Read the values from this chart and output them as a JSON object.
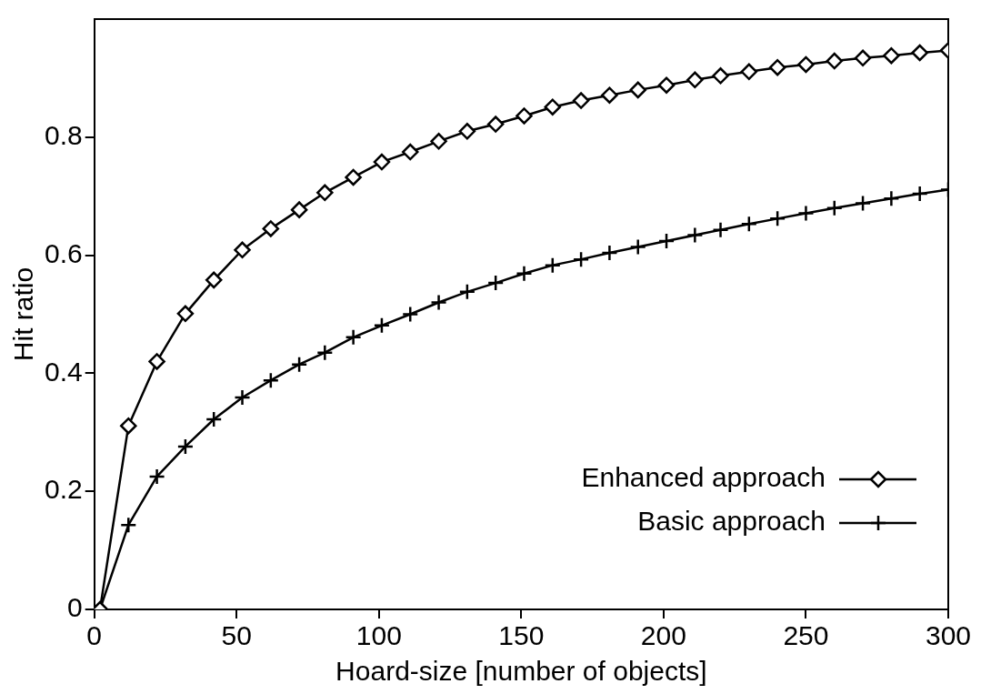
{
  "chart_data": {
    "type": "line",
    "xlabel": "Hoard-size [number of objects]",
    "ylabel": "Hit ratio",
    "x": [
      2,
      12,
      22,
      32,
      42,
      52,
      62,
      72,
      81,
      91,
      101,
      111,
      121,
      131,
      141,
      151,
      161,
      171,
      181,
      191,
      201,
      211,
      220,
      230,
      240,
      250,
      260,
      270,
      280,
      290,
      300
    ],
    "series": [
      {
        "name": "Enhanced approach",
        "color": "#000000",
        "marker": "diamond",
        "values": [
          0,
          0.311,
          0.42,
          0.501,
          0.558,
          0.609,
          0.645,
          0.677,
          0.706,
          0.732,
          0.758,
          0.775,
          0.793,
          0.81,
          0.822,
          0.836,
          0.851,
          0.862,
          0.871,
          0.88,
          0.888,
          0.897,
          0.904,
          0.911,
          0.918,
          0.923,
          0.929,
          0.934,
          0.938,
          0.943,
          0.947
        ]
      },
      {
        "name": "Basic approach",
        "color": "#000000",
        "marker": "cross",
        "values": [
          0,
          0.143,
          0.225,
          0.276,
          0.322,
          0.359,
          0.388,
          0.415,
          0.435,
          0.461,
          0.481,
          0.5,
          0.52,
          0.538,
          0.553,
          0.569,
          0.583,
          0.593,
          0.604,
          0.614,
          0.624,
          0.634,
          0.643,
          0.653,
          0.662,
          0.671,
          0.68,
          0.688,
          0.696,
          0.704,
          0.711
        ]
      }
    ],
    "xlim": [
      0,
      300
    ],
    "xticks": [
      0,
      50,
      100,
      150,
      200,
      250,
      300
    ],
    "ylim": [
      0,
      1
    ],
    "yticks": [
      0,
      0.2,
      0.4,
      0.6,
      0.8
    ],
    "grid": false,
    "legend": "bottom right",
    "line_style": "solid"
  }
}
